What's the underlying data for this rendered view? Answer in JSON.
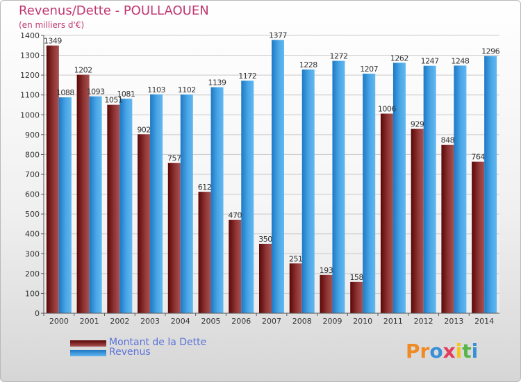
{
  "header": {
    "title": "Revenus/Dette - POULLAOUEN",
    "subtitle": "(en milliers d'€)"
  },
  "colors": {
    "dette_dark": "#5b0606",
    "dette_light": "#9e4848",
    "revenus_dark": "#1d78c4",
    "revenus_light": "#5fb5ef",
    "title": "#c0366e",
    "legend_text": "#5b72d8"
  },
  "logo": {
    "text": "Proxiti",
    "letters": [
      {
        "char": "P",
        "color": "#f08a24"
      },
      {
        "char": "r",
        "color": "#f08a24"
      },
      {
        "char": "o",
        "color": "#3a8fd9"
      },
      {
        "char": "x",
        "color": "#e23c5c"
      },
      {
        "char": "i",
        "color": "#f5c518"
      },
      {
        "char": "t",
        "color": "#58b547"
      },
      {
        "char": "i",
        "color": "#3a8fd9"
      }
    ]
  },
  "chart_data": {
    "type": "bar",
    "categories": [
      "2000",
      "2001",
      "2002",
      "2003",
      "2004",
      "2005",
      "2006",
      "2007",
      "2008",
      "2009",
      "2010",
      "2011",
      "2012",
      "2013",
      "2014"
    ],
    "series": [
      {
        "name": "Montant de la Dette",
        "values": [
          1349,
          1202,
          1051,
          902,
          757,
          612,
          470,
          350,
          251,
          193,
          158,
          1006,
          929,
          848,
          764
        ]
      },
      {
        "name": "Revenus",
        "values": [
          1088,
          1093,
          1081,
          1103,
          1102,
          1139,
          1172,
          1377,
          1228,
          1272,
          1207,
          1262,
          1247,
          1248,
          1296
        ]
      }
    ],
    "ylim": [
      0,
      1400
    ],
    "yticks": [
      0,
      100,
      200,
      300,
      400,
      500,
      600,
      700,
      800,
      900,
      1000,
      1100,
      1200,
      1300,
      1400
    ],
    "grid": true,
    "legend_position": "bottom-left"
  }
}
